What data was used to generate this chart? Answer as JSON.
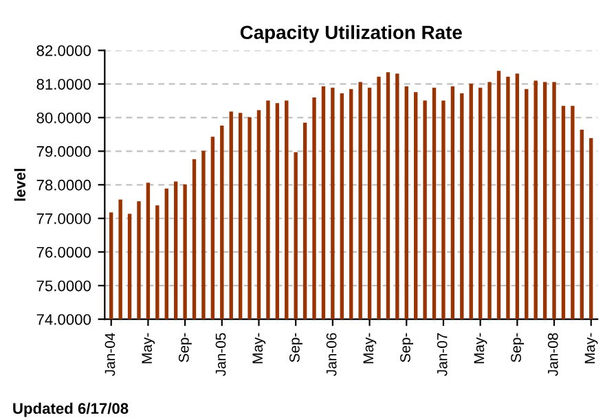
{
  "chart_data": {
    "type": "bar",
    "title": "Capacity Utilization Rate",
    "ylabel": "level",
    "categories": [
      "Jan-04",
      null,
      null,
      null,
      "May-",
      null,
      null,
      null,
      "Sep-",
      null,
      null,
      null,
      "Jan-05",
      null,
      null,
      null,
      "May-",
      null,
      null,
      null,
      "Sep-",
      null,
      null,
      null,
      "Jan-06",
      null,
      null,
      null,
      "May-",
      null,
      null,
      null,
      "Sep-",
      null,
      null,
      null,
      "Jan-07",
      null,
      null,
      null,
      "May-",
      null,
      null,
      null,
      "Sep-",
      null,
      null,
      null,
      "Jan-08",
      null,
      null,
      null,
      "May-"
    ],
    "values": [
      77.18,
      77.56,
      77.14,
      77.51,
      78.06,
      77.39,
      77.89,
      78.1,
      78.01,
      78.76,
      79.01,
      79.43,
      79.76,
      80.18,
      80.14,
      80.01,
      80.22,
      80.51,
      80.43,
      80.51,
      78.97,
      79.85,
      80.6,
      80.93,
      80.89,
      80.72,
      80.85,
      81.06,
      80.89,
      81.22,
      81.35,
      81.31,
      80.93,
      80.76,
      80.51,
      80.89,
      80.51,
      80.93,
      80.72,
      81.01,
      80.89,
      81.06,
      81.39,
      81.22,
      81.31,
      80.85,
      81.1,
      81.06,
      81.06,
      80.35,
      80.35,
      79.64,
      79.39
    ],
    "color": "#993300",
    "ylim": [
      74,
      82
    ],
    "yticks": [
      {
        "value": 74,
        "label": "74.0000"
      },
      {
        "value": 75,
        "label": "75.0000"
      },
      {
        "value": 76,
        "label": "76.0000"
      },
      {
        "value": 77,
        "label": "77.0000"
      },
      {
        "value": 78,
        "label": "78.0000"
      },
      {
        "value": 79,
        "label": "79.0000"
      },
      {
        "value": 80,
        "label": "80.0000"
      },
      {
        "value": 81,
        "label": "81.0000"
      },
      {
        "value": 82,
        "label": "82.0000"
      }
    ],
    "grid": "y",
    "annotations": [
      "Updated 6/17/08"
    ]
  }
}
